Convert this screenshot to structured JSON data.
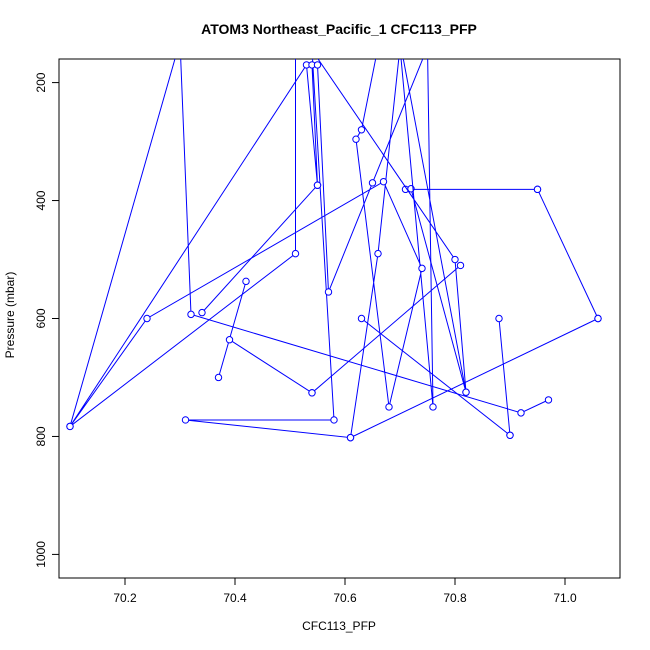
{
  "chart_data": {
    "type": "line",
    "title": "ATOM3 Northeast_Pacific_1 CFC113_PFP",
    "xlabel": "CFC113_PFP",
    "ylabel": "Pressure (mbar)",
    "xlim": [
      70.08,
      71.1
    ],
    "ylim": [
      1040,
      160
    ],
    "y_reversed": true,
    "x_ticks": [
      "70.2",
      "70.4",
      "70.6",
      "70.8",
      "71.0"
    ],
    "x_tick_values": [
      70.2,
      70.4,
      70.6,
      70.8,
      71.0
    ],
    "y_ticks": [
      "200",
      "400",
      "600",
      "800",
      "1000"
    ],
    "y_tick_values": [
      200,
      400,
      600,
      800,
      1000
    ],
    "grid": false,
    "series_color": "#0000ff",
    "series": [
      {
        "x": [
          70.51,
          70.51,
          70.1,
          70.53,
          70.55,
          70.54,
          70.55,
          70.57,
          70.65,
          70.75,
          70.76,
          70.7,
          70.66,
          70.61,
          70.31,
          70.58,
          70.54,
          70.8,
          70.82,
          70.7,
          70.66,
          70.63,
          70.62,
          70.68,
          70.74,
          70.67,
          70.24,
          70.1,
          70.3,
          70.32,
          70.92,
          70.97
        ],
        "y": [
          140,
          490,
          783,
          170,
          374,
          170,
          170,
          555,
          370,
          140,
          750,
          140,
          490,
          802,
          772,
          772,
          145,
          500,
          725,
          130,
          140,
          280,
          296,
          750,
          515,
          368,
          600,
          783,
          130,
          593,
          760,
          738
        ]
      }
    ],
    "extra_segments": [
      {
        "x": [
          70.55,
          70.34
        ],
        "y": [
          374,
          590
        ]
      },
      {
        "x": [
          70.42,
          70.37
        ],
        "y": [
          537,
          700
        ]
      },
      {
        "x": [
          70.39,
          70.54
        ],
        "y": [
          636,
          726
        ]
      },
      {
        "x": [
          70.54,
          70.81
        ],
        "y": [
          726,
          510
        ]
      },
      {
        "x": [
          70.95,
          71.06
        ],
        "y": [
          381,
          600
        ]
      },
      {
        "x": [
          70.71,
          70.95
        ],
        "y": [
          381,
          381
        ]
      },
      {
        "x": [
          70.88,
          70.9
        ],
        "y": [
          600,
          798
        ]
      },
      {
        "x": [
          70.9,
          70.63
        ],
        "y": [
          798,
          600
        ]
      },
      {
        "x": [
          70.61,
          71.06
        ],
        "y": [
          802,
          600
        ]
      },
      {
        "x": [
          70.82,
          70.72
        ],
        "y": [
          725,
          380
        ]
      }
    ]
  }
}
